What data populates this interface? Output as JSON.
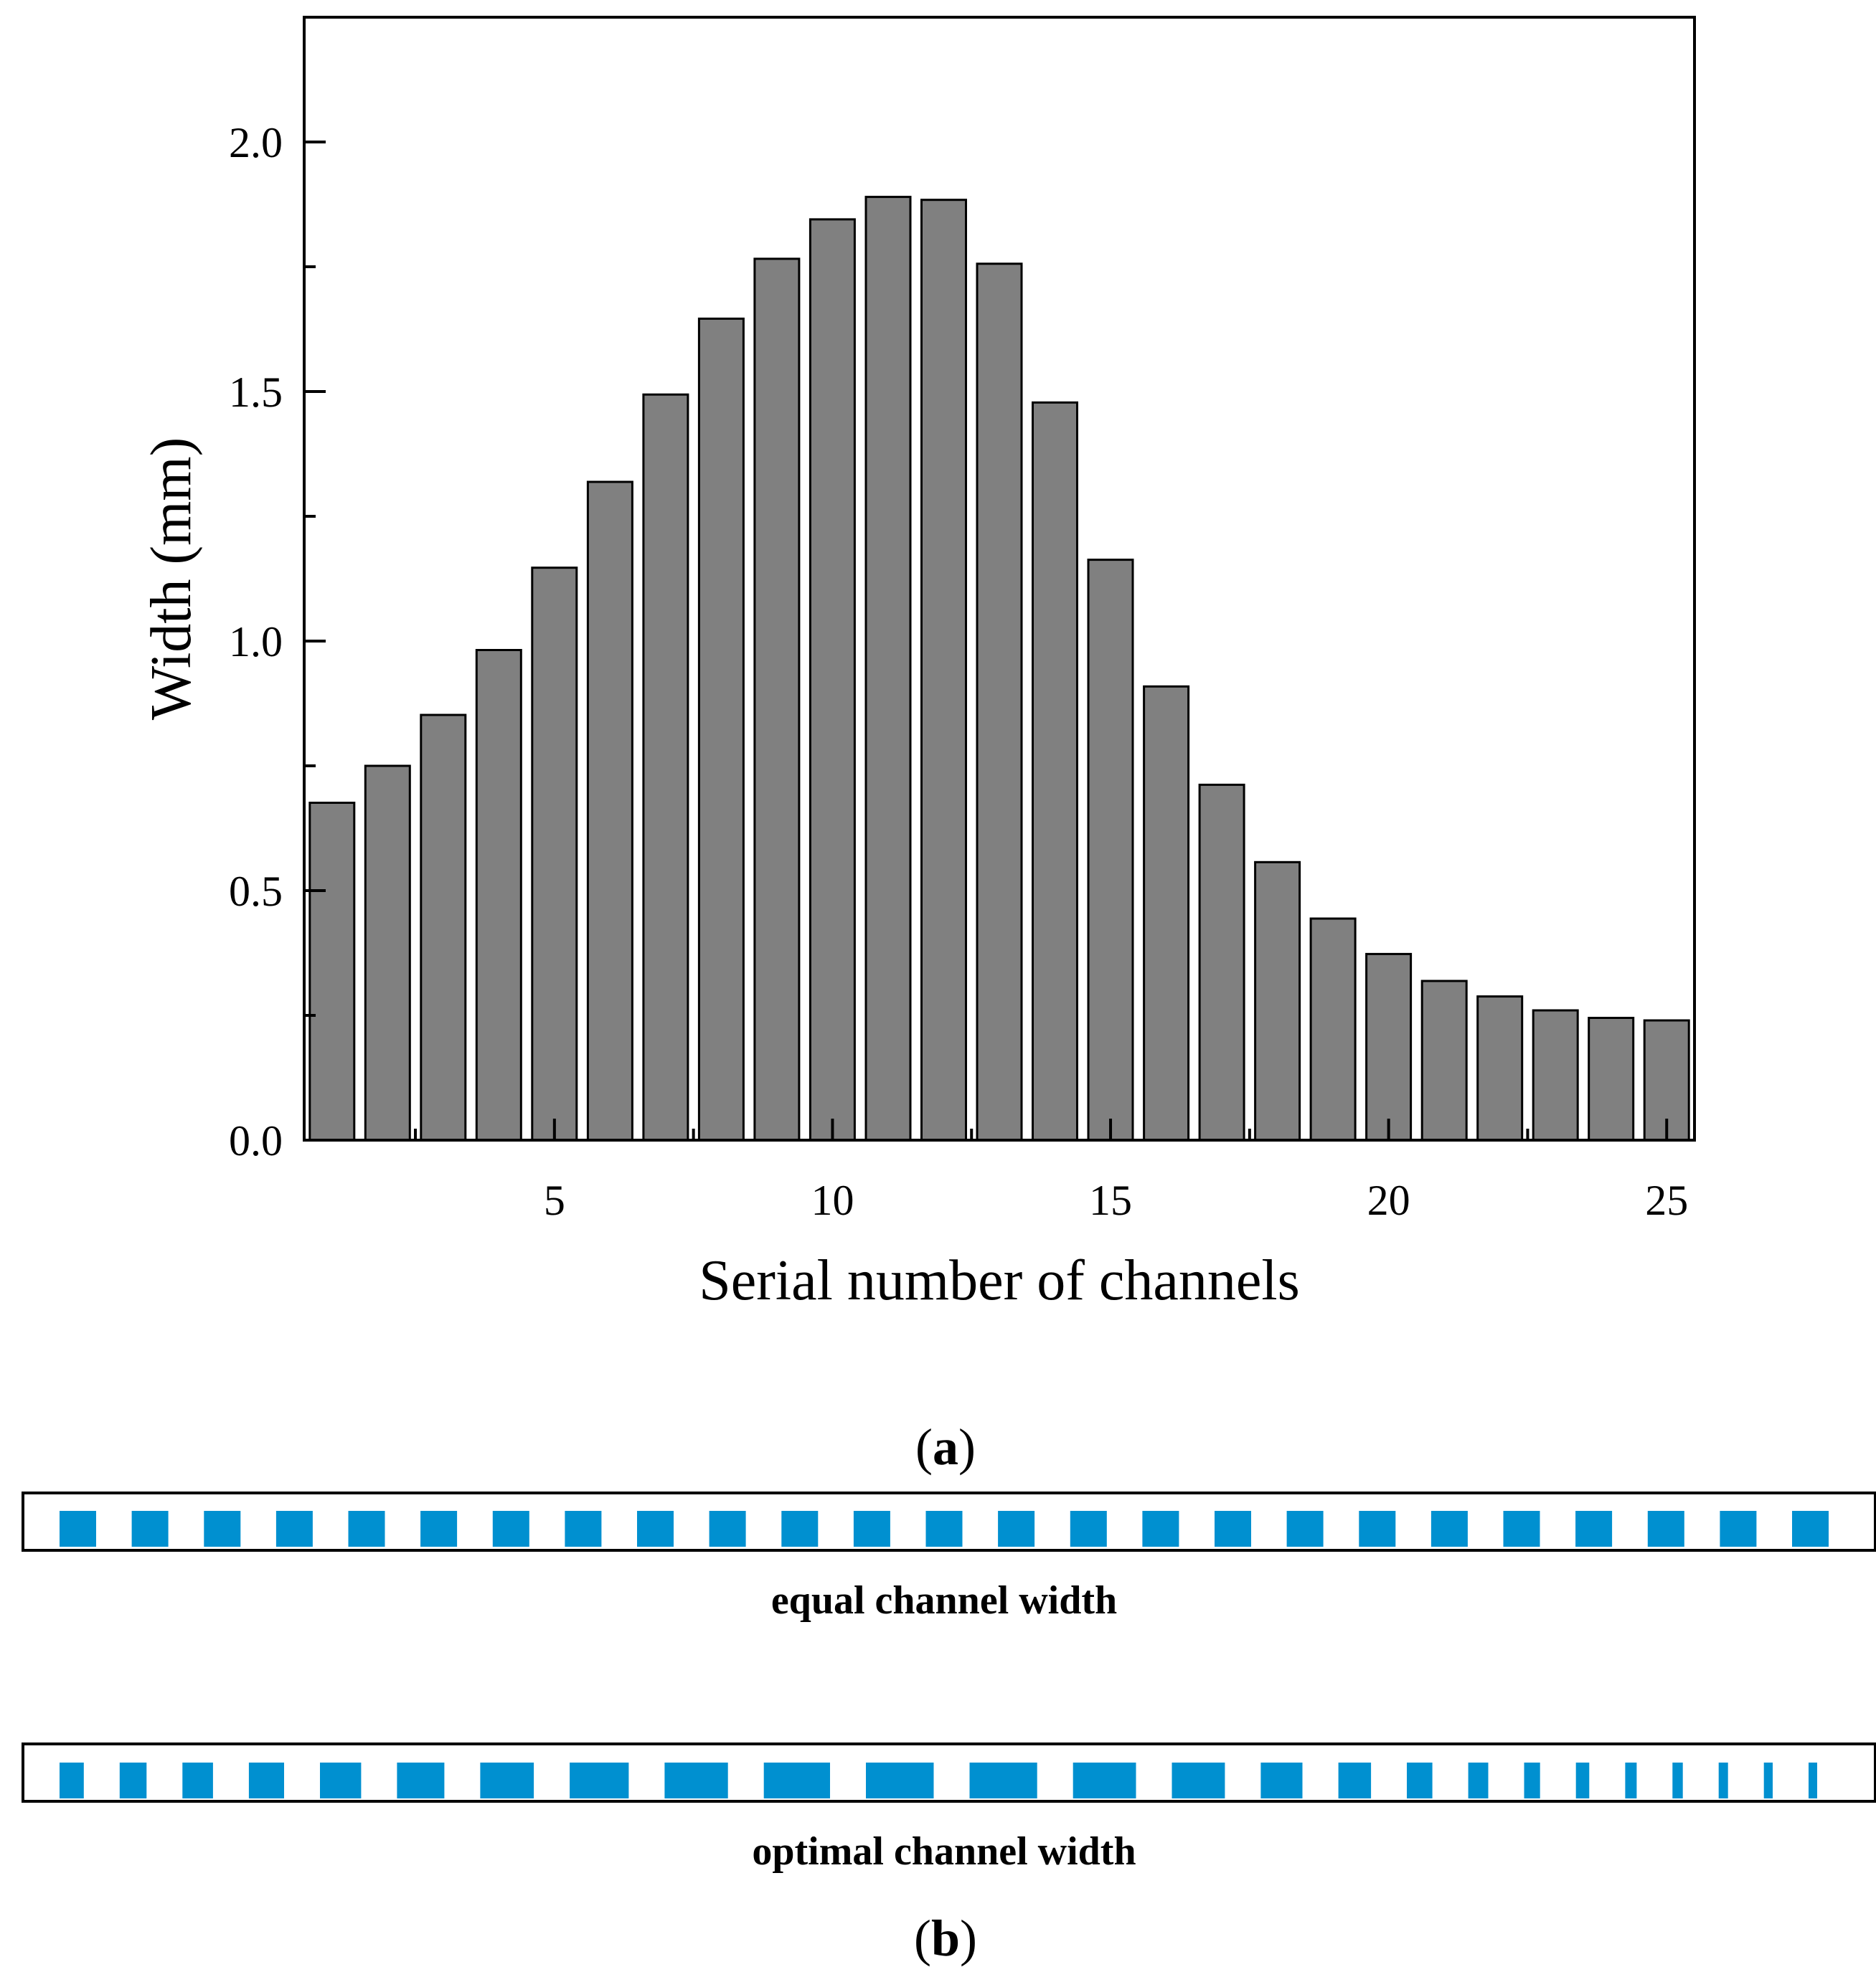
{
  "chart_data": {
    "type": "bar",
    "title": "",
    "xlabel": "Serial number of channels",
    "ylabel": "Width (mm)",
    "x": [
      1,
      2,
      3,
      4,
      5,
      6,
      7,
      8,
      9,
      10,
      11,
      12,
      13,
      14,
      15,
      16,
      17,
      18,
      19,
      20,
      21,
      22,
      23,
      24,
      25
    ],
    "values": [
      0.676,
      0.75,
      0.852,
      0.982,
      1.147,
      1.319,
      1.494,
      1.646,
      1.766,
      1.845,
      1.89,
      1.884,
      1.756,
      1.478,
      1.163,
      0.909,
      0.712,
      0.557,
      0.444,
      0.373,
      0.319,
      0.288,
      0.26,
      0.245,
      0.24
    ],
    "xlim": [
      0.5,
      25.5
    ],
    "ylim": [
      0,
      2.25
    ],
    "xticks": [
      5,
      10,
      15,
      20,
      25
    ],
    "xtick_labels": [
      "5",
      "10",
      "15",
      "20",
      "25"
    ],
    "yticks": [
      0.0,
      0.5,
      1.0,
      1.5,
      2.0
    ],
    "ytick_labels": [
      "0.0",
      "0.5",
      "1.0",
      "1.5",
      "2.0"
    ],
    "bar_color": "#808080",
    "grid": false,
    "legend": "none"
  },
  "panel_a": {
    "label_open": "(",
    "label_letter": "a",
    "label_close": ")"
  },
  "panel_b": {
    "equal": {
      "caption": "equal channel width",
      "channel_count": 25,
      "channel_widths": [
        1,
        1,
        1,
        1,
        1,
        1,
        1,
        1,
        1,
        1,
        1,
        1,
        1,
        1,
        1,
        1,
        1,
        1,
        1,
        1,
        1,
        1,
        1,
        1,
        1
      ]
    },
    "optimal": {
      "caption": "optimal channel width",
      "channel_count": 25,
      "channel_widths": [
        0.676,
        0.75,
        0.852,
        0.982,
        1.147,
        1.319,
        1.494,
        1.646,
        1.766,
        1.845,
        1.89,
        1.884,
        1.756,
        1.478,
        1.163,
        0.909,
        0.712,
        0.557,
        0.444,
        0.373,
        0.319,
        0.288,
        0.26,
        0.245,
        0.24
      ]
    },
    "channel_color": "#0090d0",
    "label_open": "(",
    "label_letter": "b",
    "label_close": ")"
  }
}
